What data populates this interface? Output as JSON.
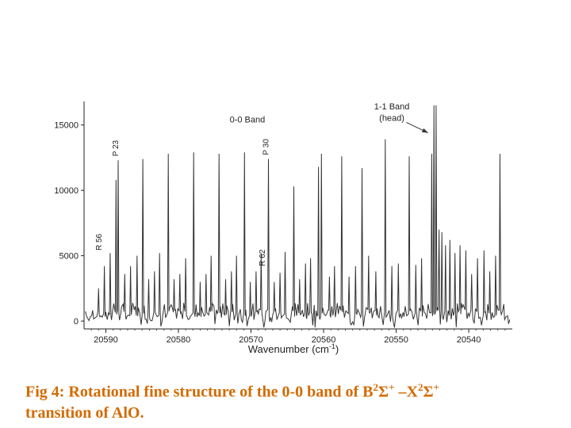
{
  "chart_data": {
    "type": "line",
    "x_axis": {
      "label_main": "Wavenumber (cm",
      "label_sup": "-1",
      "label_end": ")",
      "range": [
        20593,
        20534
      ],
      "reversed": true,
      "ticks": [
        20590,
        20580,
        20570,
        20560,
        20550,
        20540
      ]
    },
    "y_axis": {
      "range": [
        -600,
        16800
      ],
      "ticks": [
        0,
        5000,
        10000,
        15000
      ]
    },
    "series_color": "#333333",
    "peaks": [
      {
        "x": 20591.0,
        "y": 2500
      },
      {
        "x": 20590.2,
        "y": 4200
      },
      {
        "x": 20589.4,
        "y": 5200
      },
      {
        "x": 20588.6,
        "y": 10800
      },
      {
        "x": 20588.3,
        "y": 12300
      },
      {
        "x": 20587.4,
        "y": 3600
      },
      {
        "x": 20586.6,
        "y": 4200
      },
      {
        "x": 20585.7,
        "y": 5000
      },
      {
        "x": 20584.9,
        "y": 12400
      },
      {
        "x": 20584.1,
        "y": 3200
      },
      {
        "x": 20583.3,
        "y": 3800
      },
      {
        "x": 20582.6,
        "y": 5200
      },
      {
        "x": 20581.4,
        "y": 12800
      },
      {
        "x": 20580.6,
        "y": 3200
      },
      {
        "x": 20579.8,
        "y": 3600
      },
      {
        "x": 20579.0,
        "y": 4800
      },
      {
        "x": 20577.9,
        "y": 12900
      },
      {
        "x": 20577.0,
        "y": 3000
      },
      {
        "x": 20576.2,
        "y": 3600
      },
      {
        "x": 20575.5,
        "y": 5000
      },
      {
        "x": 20574.4,
        "y": 12800
      },
      {
        "x": 20573.5,
        "y": 3200
      },
      {
        "x": 20572.7,
        "y": 3800
      },
      {
        "x": 20572.0,
        "y": 5000
      },
      {
        "x": 20570.9,
        "y": 12900
      },
      {
        "x": 20570.1,
        "y": 3000
      },
      {
        "x": 20569.3,
        "y": 3800
      },
      {
        "x": 20568.6,
        "y": 5200
      },
      {
        "x": 20567.6,
        "y": 12400
      },
      {
        "x": 20566.8,
        "y": 3000
      },
      {
        "x": 20566.0,
        "y": 3700
      },
      {
        "x": 20565.3,
        "y": 5300
      },
      {
        "x": 20564.1,
        "y": 10300
      },
      {
        "x": 20563.3,
        "y": 3200
      },
      {
        "x": 20562.5,
        "y": 4400
      },
      {
        "x": 20561.8,
        "y": 4800
      },
      {
        "x": 20560.7,
        "y": 11800
      },
      {
        "x": 20560.3,
        "y": 12800
      },
      {
        "x": 20559.2,
        "y": 3400
      },
      {
        "x": 20558.5,
        "y": 4200
      },
      {
        "x": 20557.5,
        "y": 12600
      },
      {
        "x": 20556.5,
        "y": 3400
      },
      {
        "x": 20555.6,
        "y": 4200
      },
      {
        "x": 20554.7,
        "y": 11700
      },
      {
        "x": 20553.8,
        "y": 5000
      },
      {
        "x": 20552.8,
        "y": 3800
      },
      {
        "x": 20551.5,
        "y": 13900
      },
      {
        "x": 20550.6,
        "y": 4200
      },
      {
        "x": 20549.7,
        "y": 4400
      },
      {
        "x": 20548.2,
        "y": 12600
      },
      {
        "x": 20547.3,
        "y": 4300
      },
      {
        "x": 20546.5,
        "y": 4800
      },
      {
        "x": 20545.1,
        "y": 12800
      },
      {
        "x": 20544.8,
        "y": 16500
      },
      {
        "x": 20544.5,
        "y": 16500
      },
      {
        "x": 20544.1,
        "y": 7000
      },
      {
        "x": 20543.7,
        "y": 6800
      },
      {
        "x": 20543.2,
        "y": 5800
      },
      {
        "x": 20542.6,
        "y": 6200
      },
      {
        "x": 20541.9,
        "y": 5200
      },
      {
        "x": 20541.2,
        "y": 5800
      },
      {
        "x": 20540.4,
        "y": 5400
      },
      {
        "x": 20539.6,
        "y": 3600
      },
      {
        "x": 20538.8,
        "y": 4800
      },
      {
        "x": 20537.9,
        "y": 5400
      },
      {
        "x": 20537.1,
        "y": 3800
      },
      {
        "x": 20536.3,
        "y": 5000
      },
      {
        "x": 20535.7,
        "y": 12800
      }
    ],
    "annotations": [
      {
        "text": "P 23",
        "x": 20588.3,
        "y": 12600
      },
      {
        "text": "P 30",
        "x": 20567.6,
        "y": 12700
      },
      {
        "text": "R 56",
        "x": 20590.6,
        "y": 5400
      },
      {
        "text": "R 62",
        "x": 20568.1,
        "y": 4200
      },
      {
        "text": "0-0 Band",
        "x": 20570.5,
        "y": 15200
      },
      {
        "text": "1-1 Band",
        "x": 20550.6,
        "y": 16200
      },
      {
        "text": "(head)",
        "x": 20550.6,
        "y": 15300
      }
    ],
    "arrow": {
      "from": [
        20548.6,
        15200
      ],
      "to": [
        20545.6,
        14400
      ]
    }
  },
  "caption": {
    "prefix": "Fig 4:  Rotational fine structure of the 0-0 band of B",
    "sup1": "2",
    "sigma1": "Σ",
    "sup2": "+",
    "dash": " –X",
    "sup3": "2",
    "sigma2": "Σ",
    "sup4": "+",
    "line2": "transition of AlO."
  }
}
